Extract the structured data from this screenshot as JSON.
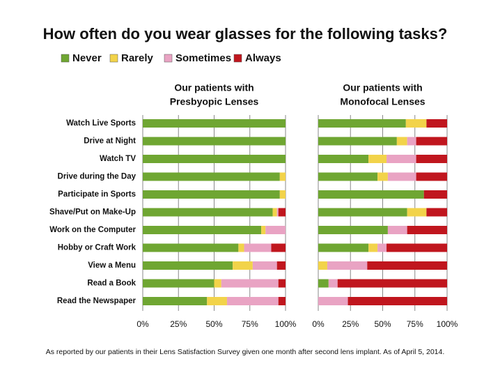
{
  "title": "How often do you wear glasses for the following tasks?",
  "footnote": "As reported by our patients in their Lens Satisfaction Survey given one month after second lens implant.  As of April 5, 2014.",
  "chart_data": [
    {
      "type": "stacked-bar-horizontal",
      "title": [
        "Our patients with",
        "Presbyopic Lenses"
      ],
      "categories": [
        "Watch Live Sports",
        "Drive at Night",
        "Watch TV",
        "Drive during the Day",
        "Participate in Sports",
        "Shave/Put on Make-Up",
        "Work on the Computer",
        "Hobby or Craft Work",
        "View a Menu",
        "Read a Book",
        "Read the Newspaper"
      ],
      "series": [
        {
          "name": "Never",
          "color": "#6fa632",
          "values": [
            100,
            100,
            100,
            96,
            96,
            91,
            83,
            67,
            63,
            50,
            45
          ]
        },
        {
          "name": "Rarely",
          "color": "#f2d34a",
          "values": [
            0,
            0,
            0,
            4,
            4,
            3,
            3,
            4,
            14,
            5,
            14
          ]
        },
        {
          "name": "Sometimes",
          "color": "#e9a3c3",
          "values": [
            0,
            0,
            0,
            0,
            0,
            1,
            14,
            19,
            17,
            40,
            36
          ]
        },
        {
          "name": "Always",
          "color": "#c0161e",
          "values": [
            0,
            0,
            0,
            0,
            0,
            5,
            0,
            10,
            6,
            5,
            5
          ]
        }
      ],
      "xlim": [
        0,
        100
      ],
      "xticks": [
        {
          "value": 0,
          "label": "0%"
        },
        {
          "value": 25,
          "label": "25%"
        },
        {
          "value": 50,
          "label": "50%"
        },
        {
          "value": 75,
          "label": "75%"
        },
        {
          "value": 100,
          "label": "100%"
        }
      ],
      "grid": true
    },
    {
      "type": "stacked-bar-horizontal",
      "title": [
        "Our patients with",
        "Monofocal Lenses"
      ],
      "series": [
        {
          "name": "Never",
          "color": "#6fa632",
          "values": [
            68,
            61,
            39,
            46,
            82,
            69,
            54,
            39,
            0,
            8,
            0
          ]
        },
        {
          "name": "Rarely",
          "color": "#f2d34a",
          "values": [
            16,
            8,
            14,
            8,
            0,
            15,
            0,
            7,
            7,
            0,
            0
          ]
        },
        {
          "name": "Sometimes",
          "color": "#e9a3c3",
          "values": [
            0,
            7,
            23,
            22,
            0,
            0,
            15,
            7,
            31,
            7,
            23
          ]
        },
        {
          "name": "Always",
          "color": "#c0161e",
          "values": [
            16,
            24,
            24,
            24,
            18,
            16,
            31,
            47,
            62,
            85,
            77
          ]
        }
      ],
      "xlim": [
        0,
        100
      ],
      "xticks": [
        {
          "value": 0,
          "label": "0%"
        },
        {
          "value": 25,
          "label": "25%"
        },
        {
          "value": 50,
          "label": "50%"
        },
        {
          "value": 75,
          "label": "75%"
        },
        {
          "value": 100,
          "label": "100%"
        }
      ],
      "grid": true
    }
  ]
}
